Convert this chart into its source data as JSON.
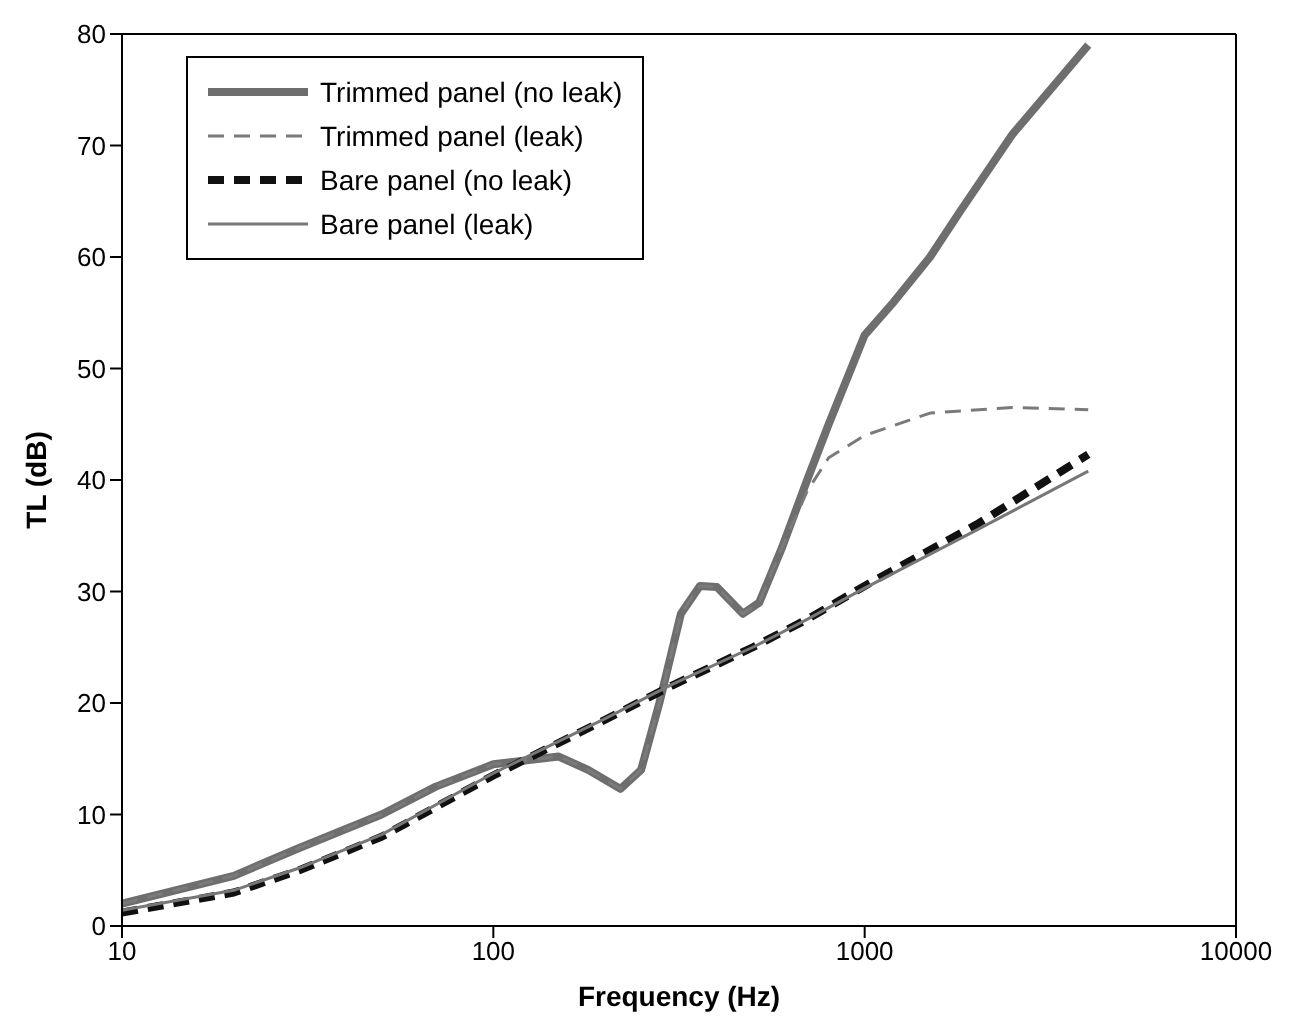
{
  "chart_data": {
    "type": "line",
    "xlabel": "Frequency (Hz)",
    "ylabel": "TL (dB)",
    "log": "x",
    "xlim": [
      10,
      10000
    ],
    "xticks": [
      10,
      100,
      1000,
      10000
    ],
    "ylim": [
      0,
      80
    ],
    "yticks": [
      0,
      10,
      20,
      30,
      40,
      50,
      60,
      70,
      80
    ],
    "legend": "top left",
    "marker": "none",
    "series": [
      {
        "name": "Trimmed panel (no leak)",
        "color": "#6e6e6e",
        "line_style": "solid",
        "x": [
          10,
          20,
          30,
          50,
          70,
          100,
          150,
          180,
          220,
          250,
          280,
          320,
          360,
          400,
          470,
          520,
          600,
          700,
          800,
          1000,
          1200,
          1500,
          1800,
          2500,
          4000
        ],
        "values": [
          2,
          4.5,
          7,
          10,
          12.5,
          14.5,
          15.2,
          14,
          12.3,
          14,
          20,
          28,
          30.5,
          30.4,
          28,
          29,
          34,
          40,
          45,
          53,
          56,
          60,
          64,
          71,
          79
        ]
      },
      {
        "name": "Trimmed panel (leak)",
        "color": "#7a7a7a",
        "line_style": "dashed",
        "x": [
          10,
          20,
          30,
          50,
          70,
          100,
          150,
          180,
          220,
          250,
          280,
          320,
          360,
          400,
          470,
          520,
          600,
          700,
          800,
          1000,
          1500,
          2500,
          4000
        ],
        "values": [
          2,
          4.5,
          7,
          10,
          12.5,
          14.5,
          15.2,
          14,
          12.3,
          14,
          20,
          28,
          30.5,
          30.4,
          28,
          29,
          34,
          39,
          42,
          44,
          46,
          46.5,
          46.3
        ]
      },
      {
        "name": "Bare panel (no leak)",
        "color": "#111111",
        "line_style": "dashed",
        "x": [
          10,
          20,
          30,
          50,
          100,
          200,
          300,
          500,
          700,
          1000,
          2000,
          4000
        ],
        "values": [
          1.2,
          3,
          5,
          8,
          13.5,
          18.5,
          21.5,
          25,
          27.5,
          30.5,
          36,
          42.3
        ]
      },
      {
        "name": "Bare panel (leak)",
        "color": "#777777",
        "line_style": "solid",
        "x": [
          10,
          20,
          30,
          50,
          100,
          200,
          300,
          500,
          700,
          1000,
          2000,
          4000
        ],
        "values": [
          1.4,
          3.2,
          5.2,
          8.2,
          13.7,
          18.6,
          21.6,
          25,
          27.5,
          30.3,
          35.5,
          40.8
        ]
      }
    ]
  }
}
